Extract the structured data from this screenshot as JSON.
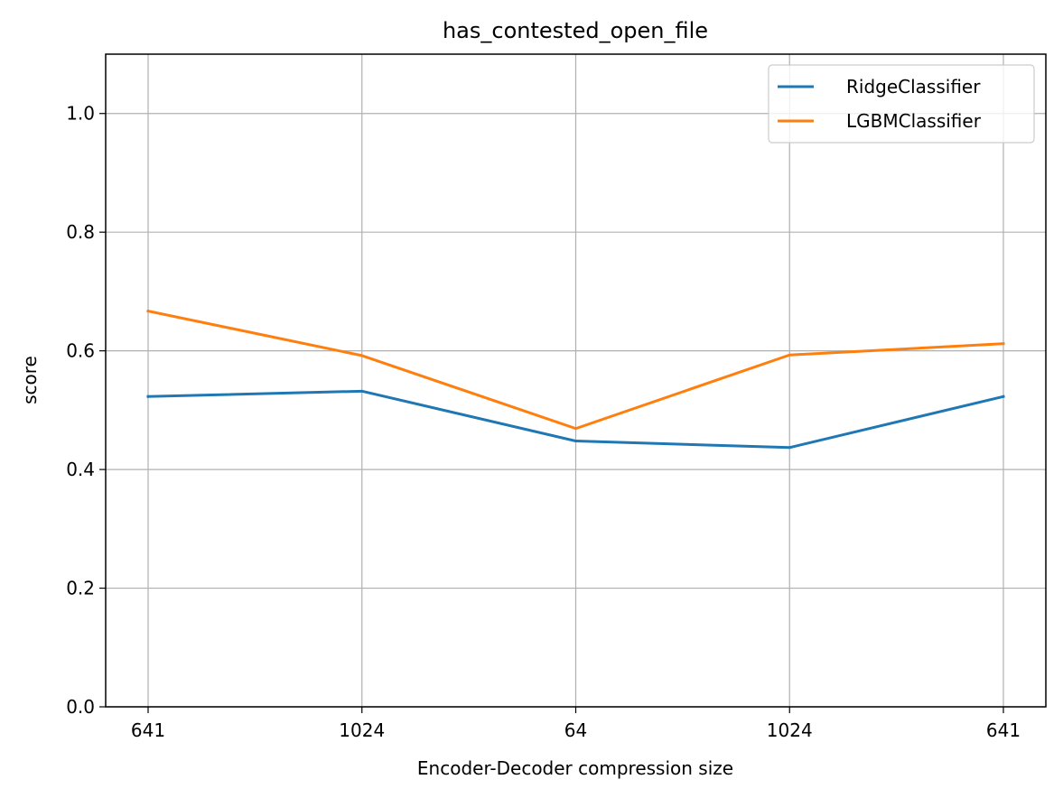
{
  "chart_data": {
    "type": "line",
    "title": "has_contested_open_file",
    "xlabel": "Encoder-Decoder compression size",
    "ylabel": "score",
    "categories": [
      "641",
      "1024",
      "64",
      "1024",
      "641"
    ],
    "ylim": [
      0.0,
      1.1
    ],
    "yticks": [
      "0.0",
      "0.2",
      "0.4",
      "0.6",
      "0.8",
      "1.0"
    ],
    "grid": true,
    "legend_position": "top-right",
    "series": [
      {
        "name": "RidgeClassifier",
        "color": "#1f77b4",
        "values": [
          0.523,
          0.532,
          0.448,
          0.437,
          0.523
        ]
      },
      {
        "name": "LGBMClassifier",
        "color": "#ff7f0e",
        "values": [
          0.667,
          0.592,
          0.469,
          0.593,
          0.612
        ]
      }
    ]
  }
}
